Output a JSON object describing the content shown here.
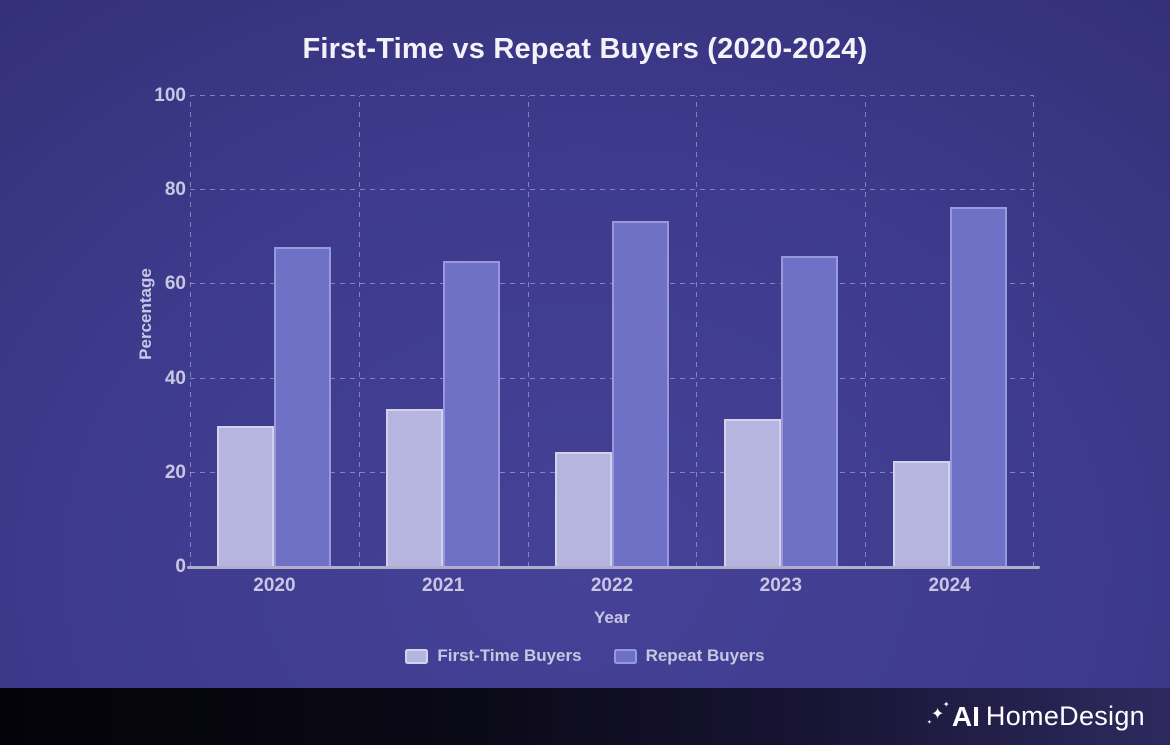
{
  "chart_data": {
    "type": "bar",
    "title": "First-Time vs Repeat Buyers (2020-2024)",
    "xlabel": "Year",
    "ylabel": "Percentage",
    "ylim": [
      0,
      100
    ],
    "yticks": [
      0,
      20,
      40,
      60,
      80,
      100
    ],
    "grid": "dashed",
    "legend_position": "bottom",
    "categories": [
      "2020",
      "2021",
      "2022",
      "2023",
      "2024"
    ],
    "series": [
      {
        "name": "First-Time Buyers",
        "values": [
          30,
          33.5,
          24.5,
          31.5,
          22.5
        ],
        "fill": "#b6b5e0",
        "border": "#d2d1ee"
      },
      {
        "name": "Repeat Buyers",
        "values": [
          68,
          65,
          73.5,
          66,
          76.5
        ],
        "fill": "#6f71c7",
        "border": "#9799db"
      }
    ]
  },
  "colors": {
    "title_text": "#f3f2f9",
    "axis_text": "#c8c6e2",
    "axis_line": "#b0aecb",
    "gridline": "rgba(203,201,230,0.5)"
  },
  "branding": {
    "sparkle": "✦",
    "logo_bold": "AI",
    "logo_regular": "HomeDesign"
  }
}
